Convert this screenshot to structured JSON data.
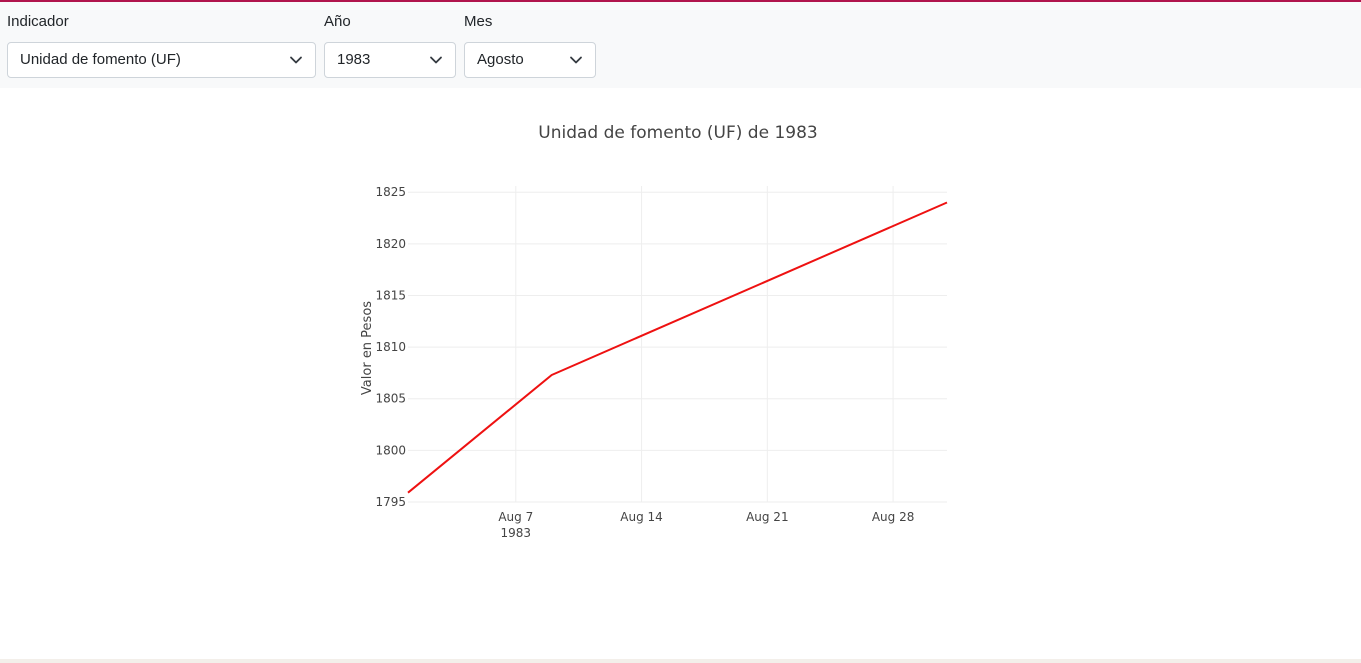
{
  "filters": {
    "indicador": {
      "label": "Indicador",
      "value": "Unidad de fomento (UF)"
    },
    "anio": {
      "label": "Año",
      "value": "1983"
    },
    "mes": {
      "label": "Mes",
      "value": "Agosto"
    }
  },
  "icons": {
    "dropdown": "chevron-down-icon"
  },
  "colors": {
    "accent": "#b0144c",
    "line": "#ee1111",
    "grid": "#eeeeee"
  },
  "chart_data": {
    "type": "line",
    "title": "Unidad de fomento (UF) de 1983",
    "xlabel": "",
    "ylabel": "Valor en Pesos",
    "x_start": "1983-08-01",
    "xlim": [
      "1983-08-01",
      "1983-08-31"
    ],
    "ylim": [
      1795,
      1825.6
    ],
    "yticks": [
      1795,
      1800,
      1805,
      1810,
      1815,
      1820,
      1825
    ],
    "xticks": [
      {
        "date": "1983-08-07",
        "label": "Aug 7",
        "sublabel": "1983"
      },
      {
        "date": "1983-08-14",
        "label": "Aug 14",
        "sublabel": ""
      },
      {
        "date": "1983-08-21",
        "label": "Aug 21",
        "sublabel": ""
      },
      {
        "date": "1983-08-28",
        "label": "Aug 28",
        "sublabel": ""
      }
    ],
    "grid": true,
    "series": [
      {
        "color": "#ee1111",
        "x": [
          "1983-08-01",
          "1983-08-09",
          "1983-08-31"
        ],
        "y": [
          1795.9,
          1807.3,
          1824.0
        ]
      }
    ]
  }
}
